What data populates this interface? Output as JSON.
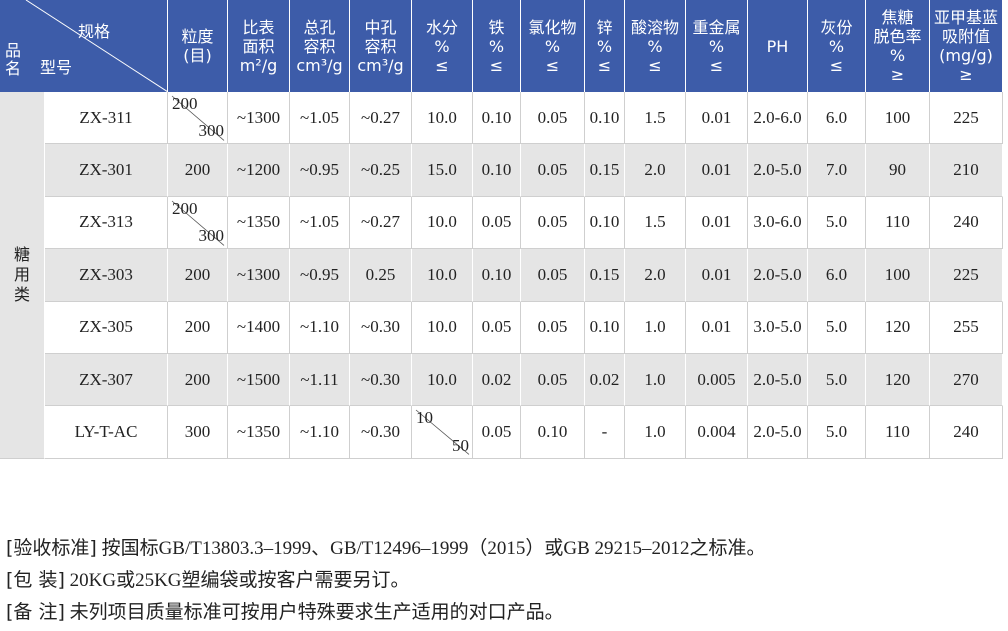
{
  "header": {
    "spec": "规格",
    "model": "型号",
    "product": "品名",
    "columns": [
      [
        "粒度",
        "(目)"
      ],
      [
        "比表",
        "面积",
        "m²/g"
      ],
      [
        "总孔",
        "容积",
        "cm³/g"
      ],
      [
        "中孔",
        "容积",
        "cm³/g"
      ],
      [
        "水分",
        "%",
        "≤"
      ],
      [
        "铁",
        "%",
        "≤"
      ],
      [
        "氯化物",
        "%",
        "≤"
      ],
      [
        "锌",
        "%",
        "≤"
      ],
      [
        "酸溶物",
        "%",
        "≤"
      ],
      [
        "重金属",
        "%",
        "≤"
      ],
      [
        "PH"
      ],
      [
        "灰份",
        "%",
        "≤"
      ],
      [
        "焦糖",
        "脱色率",
        "%",
        "≥"
      ],
      [
        "亚甲基蓝",
        "吸附值",
        "(mg/g)",
        "≥"
      ]
    ]
  },
  "category": "糖用类",
  "table": {
    "rows": [
      [
        "ZX-311",
        [
          "200",
          "300"
        ],
        "~1300",
        "~1.05",
        "~0.27",
        "10.0",
        "0.10",
        "0.05",
        "0.10",
        "1.5",
        "0.01",
        "2.0-6.0",
        "6.0",
        "100",
        "225"
      ],
      [
        "ZX-301",
        "200",
        "~1200",
        "~0.95",
        "~0.25",
        "15.0",
        "0.10",
        "0.05",
        "0.15",
        "2.0",
        "0.01",
        "2.0-5.0",
        "7.0",
        "90",
        "210"
      ],
      [
        "ZX-313",
        [
          "200",
          "300"
        ],
        "~1350",
        "~1.05",
        "~0.27",
        "10.0",
        "0.05",
        "0.05",
        "0.10",
        "1.5",
        "0.01",
        "3.0-6.0",
        "5.0",
        "110",
        "240"
      ],
      [
        "ZX-303",
        "200",
        "~1300",
        "~0.95",
        "0.25",
        "10.0",
        "0.10",
        "0.05",
        "0.15",
        "2.0",
        "0.01",
        "2.0-5.0",
        "6.0",
        "100",
        "225"
      ],
      [
        "ZX-305",
        "200",
        "~1400",
        "~1.10",
        "~0.30",
        "10.0",
        "0.05",
        "0.05",
        "0.10",
        "1.0",
        "0.01",
        "3.0-5.0",
        "5.0",
        "120",
        "255"
      ],
      [
        "ZX-307",
        "200",
        "~1500",
        "~1.11",
        "~0.30",
        "10.0",
        "0.02",
        "0.05",
        "0.02",
        "1.0",
        "0.005",
        "2.0-5.0",
        "5.0",
        "120",
        "270"
      ],
      [
        "LY-T-AC",
        "300",
        "~1350",
        "~1.10",
        "~0.30",
        [
          "10",
          "50"
        ],
        "0.05",
        "0.10",
        "-",
        "1.0",
        "0.004",
        "2.0-5.0",
        "5.0",
        "110",
        "240"
      ]
    ]
  },
  "notes": [
    {
      "label": "[验收标准]",
      "text": "按国标GB/T13803.3–1999、GB/T12496–1999（2015）或GB 29215–2012之标准。"
    },
    {
      "label": "[包 装]",
      "text": "20KG或25KG塑编袋或按客户需要另订。"
    },
    {
      "label": "[备 注]",
      "text": "未列项目质量标准可按用户特殊要求生产适用的对口产品。"
    }
  ]
}
